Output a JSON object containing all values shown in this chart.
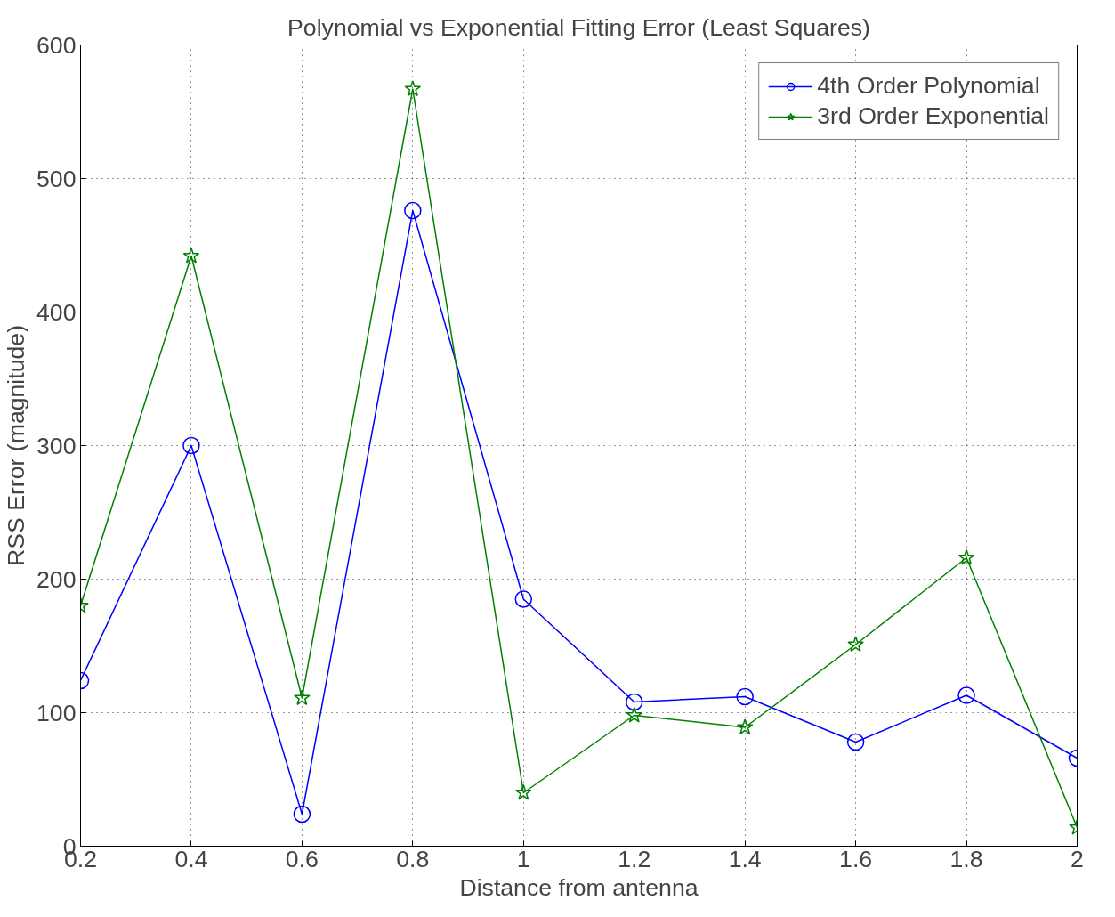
{
  "chart_data": {
    "type": "line",
    "title": "Polynomial vs Exponential Fitting Error (Least Squares)",
    "xlabel": "Distance from antenna",
    "ylabel": "RSS Error (magnitude)",
    "x": [
      0.2,
      0.4,
      0.6,
      0.8,
      1.0,
      1.2,
      1.4,
      1.6,
      1.8,
      2.0
    ],
    "series": [
      {
        "name": "4th Order Polynomial",
        "color": "#0000ff",
        "marker": "circle",
        "values": [
          124,
          300,
          24,
          476,
          185,
          108,
          112,
          78,
          113,
          66
        ]
      },
      {
        "name": "3rd Order Exponential",
        "color": "#008000",
        "marker": "star",
        "values": [
          180,
          442,
          111,
          567,
          40,
          98,
          89,
          151,
          216,
          14
        ]
      }
    ],
    "xlim": [
      0.2,
      2.0
    ],
    "ylim": [
      0,
      600
    ],
    "xticks": [
      0.2,
      0.4,
      0.6,
      0.8,
      1,
      1.2,
      1.4,
      1.6,
      1.8,
      2
    ],
    "yticks": [
      0,
      100,
      200,
      300,
      400,
      500,
      600
    ],
    "grid": true,
    "legend": "top right",
    "line_style": "solid"
  }
}
